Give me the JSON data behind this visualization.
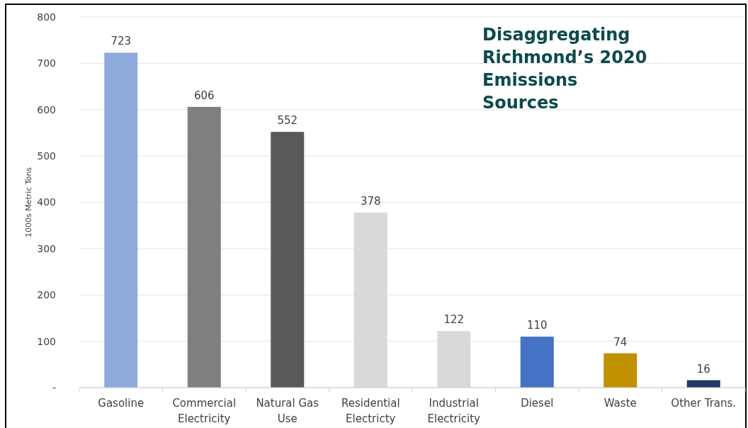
{
  "chart_data": {
    "type": "bar",
    "title": "Disaggregating Richmond’s 2020 Emissions Sources",
    "ylabel": "1000s Metric Tons",
    "categories": [
      "Gasoline",
      "Commercial Electricity",
      "Natural Gas Use",
      "Residential Electricty",
      "Industrial Electricity",
      "Diesel",
      "Waste",
      "Other Trans."
    ],
    "values": [
      723,
      606,
      552,
      378,
      122,
      110,
      74,
      16
    ],
    "colors": [
      "#8faadc",
      "#7f7f7f",
      "#595959",
      "#d9d9d9",
      "#d9d9d9",
      "#4472c4",
      "#bf9000",
      "#203864"
    ],
    "ylim": [
      0,
      800
    ],
    "yticks": [
      {
        "value": 0,
        "label": "-"
      },
      100,
      200,
      300,
      400,
      500,
      600,
      700,
      800
    ],
    "grid": "y",
    "data_labels": true
  }
}
